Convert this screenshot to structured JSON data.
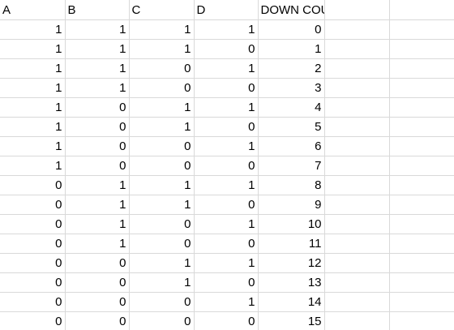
{
  "headers": {
    "a": "A",
    "b": "B",
    "c": "C",
    "d": "D",
    "output": "DOWN COUNTER OUTPUT"
  },
  "rows": [
    {
      "a": "1",
      "b": "1",
      "c": "1",
      "d": "1",
      "out": "0"
    },
    {
      "a": "1",
      "b": "1",
      "c": "1",
      "d": "0",
      "out": "1"
    },
    {
      "a": "1",
      "b": "1",
      "c": "0",
      "d": "1",
      "out": "2"
    },
    {
      "a": "1",
      "b": "1",
      "c": "0",
      "d": "0",
      "out": "3"
    },
    {
      "a": "1",
      "b": "0",
      "c": "1",
      "d": "1",
      "out": "4"
    },
    {
      "a": "1",
      "b": "0",
      "c": "1",
      "d": "0",
      "out": "5"
    },
    {
      "a": "1",
      "b": "0",
      "c": "0",
      "d": "1",
      "out": "6"
    },
    {
      "a": "1",
      "b": "0",
      "c": "0",
      "d": "0",
      "out": "7"
    },
    {
      "a": "0",
      "b": "1",
      "c": "1",
      "d": "1",
      "out": "8"
    },
    {
      "a": "0",
      "b": "1",
      "c": "1",
      "d": "0",
      "out": "9"
    },
    {
      "a": "0",
      "b": "1",
      "c": "0",
      "d": "1",
      "out": "10"
    },
    {
      "a": "0",
      "b": "1",
      "c": "0",
      "d": "0",
      "out": "11"
    },
    {
      "a": "0",
      "b": "0",
      "c": "1",
      "d": "1",
      "out": "12"
    },
    {
      "a": "0",
      "b": "0",
      "c": "1",
      "d": "0",
      "out": "13"
    },
    {
      "a": "0",
      "b": "0",
      "c": "0",
      "d": "1",
      "out": "14"
    },
    {
      "a": "0",
      "b": "0",
      "c": "0",
      "d": "0",
      "out": "15"
    }
  ],
  "colors": {
    "gridline": "#d9d9d9",
    "text": "#000000",
    "background": "#ffffff"
  }
}
